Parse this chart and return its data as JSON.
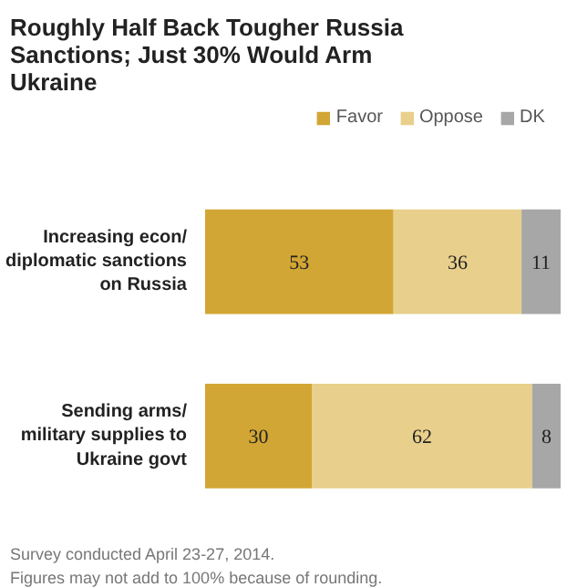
{
  "chart_data": {
    "type": "bar",
    "orientation": "horizontal",
    "stacked": true,
    "title": "Roughly Half Back Tougher Russia Sanctions; Just 30% Would Arm Ukraine",
    "categories": [
      "Increasing econ/ diplomatic sanctions on Russia",
      "Sending arms/ military supplies to Ukraine govt"
    ],
    "series": [
      {
        "name": "Favor",
        "color": "#d2a634",
        "values": [
          53,
          30
        ]
      },
      {
        "name": "Oppose",
        "color": "#e8cf8b",
        "values": [
          36,
          62
        ]
      },
      {
        "name": "DK",
        "color": "#a7a7a7",
        "values": [
          11,
          8
        ]
      }
    ],
    "xlim": [
      0,
      100
    ],
    "tick_labels": "y",
    "data_labels": true,
    "legend": "top right",
    "grid": false,
    "annotations": [
      "Survey conducted April 23-27, 2014.",
      "Figures may not add to 100% because of rounding."
    ]
  }
}
